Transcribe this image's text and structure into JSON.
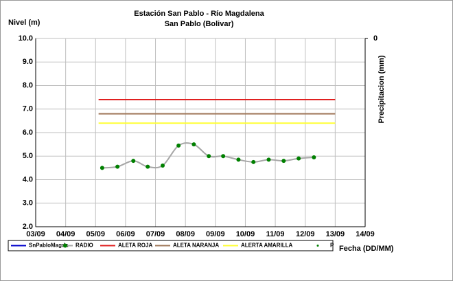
{
  "chart_data": {
    "type": "line",
    "title": "Estación San Pablo - Río Magdalena",
    "subtitle": "San Pablo (Bolivar)",
    "y_label": "Nivel (m)",
    "y2_label": "Precipitacion (mm)",
    "x_label": "Fecha (DD/MM)",
    "xlim": [
      3,
      14
    ],
    "xticks": [
      {
        "value": 3,
        "label": "03/09"
      },
      {
        "value": 4,
        "label": "04/09"
      },
      {
        "value": 5,
        "label": "05/09"
      },
      {
        "value": 6,
        "label": "06/09"
      },
      {
        "value": 7,
        "label": "07/09"
      },
      {
        "value": 8,
        "label": "08/09"
      },
      {
        "value": 9,
        "label": "09/09"
      },
      {
        "value": 10,
        "label": "10/09"
      },
      {
        "value": 11,
        "label": "11/09"
      },
      {
        "value": 12,
        "label": "12/09"
      },
      {
        "value": 13,
        "label": "13/09"
      },
      {
        "value": 14,
        "label": "14/09"
      }
    ],
    "ylim": [
      2,
      10
    ],
    "yticks": [
      {
        "value": 2,
        "label": "2.0"
      },
      {
        "value": 3,
        "label": "3.0"
      },
      {
        "value": 4,
        "label": "4.0"
      },
      {
        "value": 5,
        "label": "5.0"
      },
      {
        "value": 6,
        "label": "6.0"
      },
      {
        "value": 7,
        "label": "7.0"
      },
      {
        "value": 8,
        "label": "8.0"
      },
      {
        "value": 9,
        "label": "9.0"
      },
      {
        "value": 10,
        "label": "10.0"
      }
    ],
    "y2ticks": [
      0
    ],
    "grid": true,
    "series": [
      {
        "name": "SnPabloMagda",
        "color": "#0000cc",
        "x": [],
        "values": []
      },
      {
        "name": "RADIO",
        "color": "#a6a6a6",
        "marker_color": "#008000",
        "x": [
          5.22,
          5.73,
          6.26,
          6.74,
          7.24,
          7.77,
          8.28,
          8.78,
          9.26,
          9.77,
          10.27,
          10.78,
          11.28,
          11.78,
          12.29
        ],
        "values": [
          4.5,
          4.55,
          4.8,
          4.55,
          4.6,
          5.45,
          5.5,
          5.0,
          5.0,
          4.85,
          4.75,
          4.85,
          4.8,
          4.9,
          4.95
        ]
      },
      {
        "name": "ALETA ROJA",
        "color": "#e02020",
        "x": [
          5.1,
          13
        ],
        "values": [
          7.4,
          7.4
        ]
      },
      {
        "name": "ALETA NARANJA",
        "color": "#a0785a",
        "x": [
          5.1,
          13
        ],
        "values": [
          6.8,
          6.8
        ]
      },
      {
        "name": "ALERTA AMARILLA",
        "color": "#ffff33",
        "x": [
          5.1,
          13
        ],
        "values": [
          6.4,
          6.4
        ]
      },
      {
        "name": "P",
        "color": "#008000",
        "x": [],
        "values": []
      }
    ]
  }
}
